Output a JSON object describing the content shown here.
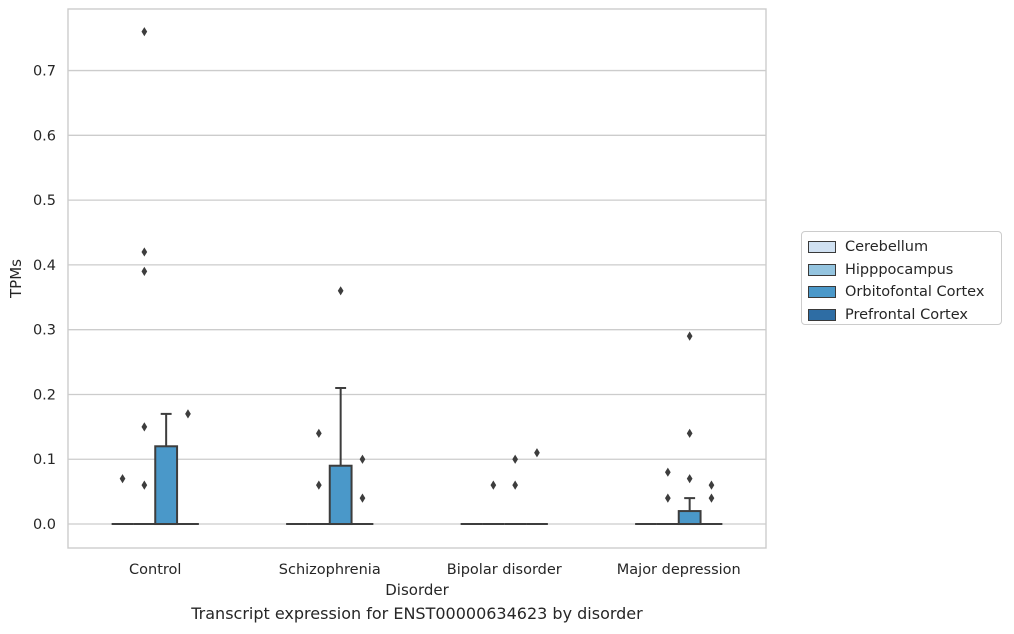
{
  "chart_data": {
    "type": "box",
    "caption": "Transcript expression for ENST00000634623 by disorder",
    "xlabel": "Disorder",
    "ylabel": "TPMs",
    "ylim": [
      -0.037,
      0.795
    ],
    "yticks": [
      0.0,
      0.1,
      0.2,
      0.3,
      0.4,
      0.5,
      0.6,
      0.7
    ],
    "ytick_labels": [
      "0.0",
      "0.1",
      "0.2",
      "0.3",
      "0.4",
      "0.5",
      "0.6",
      "0.7"
    ],
    "grid": "horizontal",
    "legend_position": "right",
    "categories": [
      "Control",
      "Schizophrenia",
      "Bipolar disorder",
      "Major depression"
    ],
    "series": [
      {
        "name": "Cerebellum",
        "color": "#d0e1f2",
        "boxes": [
          {
            "category": "Control",
            "q1": 0.0,
            "median": 0.0,
            "q3": 0.0,
            "whisker_low": 0.0,
            "whisker_high": 0.0,
            "outliers": [
              0.07
            ]
          },
          {
            "category": "Schizophrenia",
            "q1": 0.0,
            "median": 0.0,
            "q3": 0.0,
            "whisker_low": 0.0,
            "whisker_high": 0.0,
            "outliers": []
          },
          {
            "category": "Bipolar disorder",
            "q1": 0.0,
            "median": 0.0,
            "q3": 0.0,
            "whisker_low": 0.0,
            "whisker_high": 0.0,
            "outliers": []
          },
          {
            "category": "Major depression",
            "q1": 0.0,
            "median": 0.0,
            "q3": 0.0,
            "whisker_low": 0.0,
            "whisker_high": 0.0,
            "outliers": []
          }
        ]
      },
      {
        "name": "Hipppocampus",
        "color": "#94c4df",
        "boxes": [
          {
            "category": "Control",
            "q1": 0.0,
            "median": 0.0,
            "q3": 0.0,
            "whisker_low": 0.0,
            "whisker_high": 0.0,
            "outliers": [
              0.06,
              0.15,
              0.39,
              0.42,
              0.76
            ]
          },
          {
            "category": "Schizophrenia",
            "q1": 0.0,
            "median": 0.0,
            "q3": 0.0,
            "whisker_low": 0.0,
            "whisker_high": 0.0,
            "outliers": [
              0.06,
              0.14
            ]
          },
          {
            "category": "Bipolar disorder",
            "q1": 0.0,
            "median": 0.0,
            "q3": 0.0,
            "whisker_low": 0.0,
            "whisker_high": 0.0,
            "outliers": [
              0.06
            ]
          },
          {
            "category": "Major depression",
            "q1": 0.0,
            "median": 0.0,
            "q3": 0.0,
            "whisker_low": 0.0,
            "whisker_high": 0.0,
            "outliers": [
              0.04,
              0.08
            ]
          }
        ]
      },
      {
        "name": "Orbitofontal Cortex",
        "color": "#4a98c9",
        "boxes": [
          {
            "category": "Control",
            "q1": 0.0,
            "median": 0.0,
            "q3": 0.12,
            "whisker_low": 0.0,
            "whisker_high": 0.17,
            "outliers": []
          },
          {
            "category": "Schizophrenia",
            "q1": 0.0,
            "median": 0.0,
            "q3": 0.09,
            "whisker_low": 0.0,
            "whisker_high": 0.21,
            "outliers": [
              0.36
            ]
          },
          {
            "category": "Bipolar disorder",
            "q1": 0.0,
            "median": 0.0,
            "q3": 0.0,
            "whisker_low": 0.0,
            "whisker_high": 0.0,
            "outliers": [
              0.06,
              0.1
            ]
          },
          {
            "category": "Major depression",
            "q1": 0.0,
            "median": 0.0,
            "q3": 0.02,
            "whisker_low": 0.0,
            "whisker_high": 0.04,
            "outliers": [
              0.07,
              0.14,
              0.29
            ]
          }
        ]
      },
      {
        "name": "Prefrontal Cortex",
        "color": "#2e6da4",
        "boxes": [
          {
            "category": "Control",
            "q1": 0.0,
            "median": 0.0,
            "q3": 0.0,
            "whisker_low": 0.0,
            "whisker_high": 0.0,
            "outliers": [
              0.17
            ]
          },
          {
            "category": "Schizophrenia",
            "q1": 0.0,
            "median": 0.0,
            "q3": 0.0,
            "whisker_low": 0.0,
            "whisker_high": 0.0,
            "outliers": [
              0.04,
              0.1
            ]
          },
          {
            "category": "Bipolar disorder",
            "q1": 0.0,
            "median": 0.0,
            "q3": 0.0,
            "whisker_low": 0.0,
            "whisker_high": 0.0,
            "outliers": [
              0.11
            ]
          },
          {
            "category": "Major depression",
            "q1": 0.0,
            "median": 0.0,
            "q3": 0.0,
            "whisker_low": 0.0,
            "whisker_high": 0.0,
            "outliers": [
              0.04,
              0.06
            ]
          }
        ]
      }
    ]
  }
}
